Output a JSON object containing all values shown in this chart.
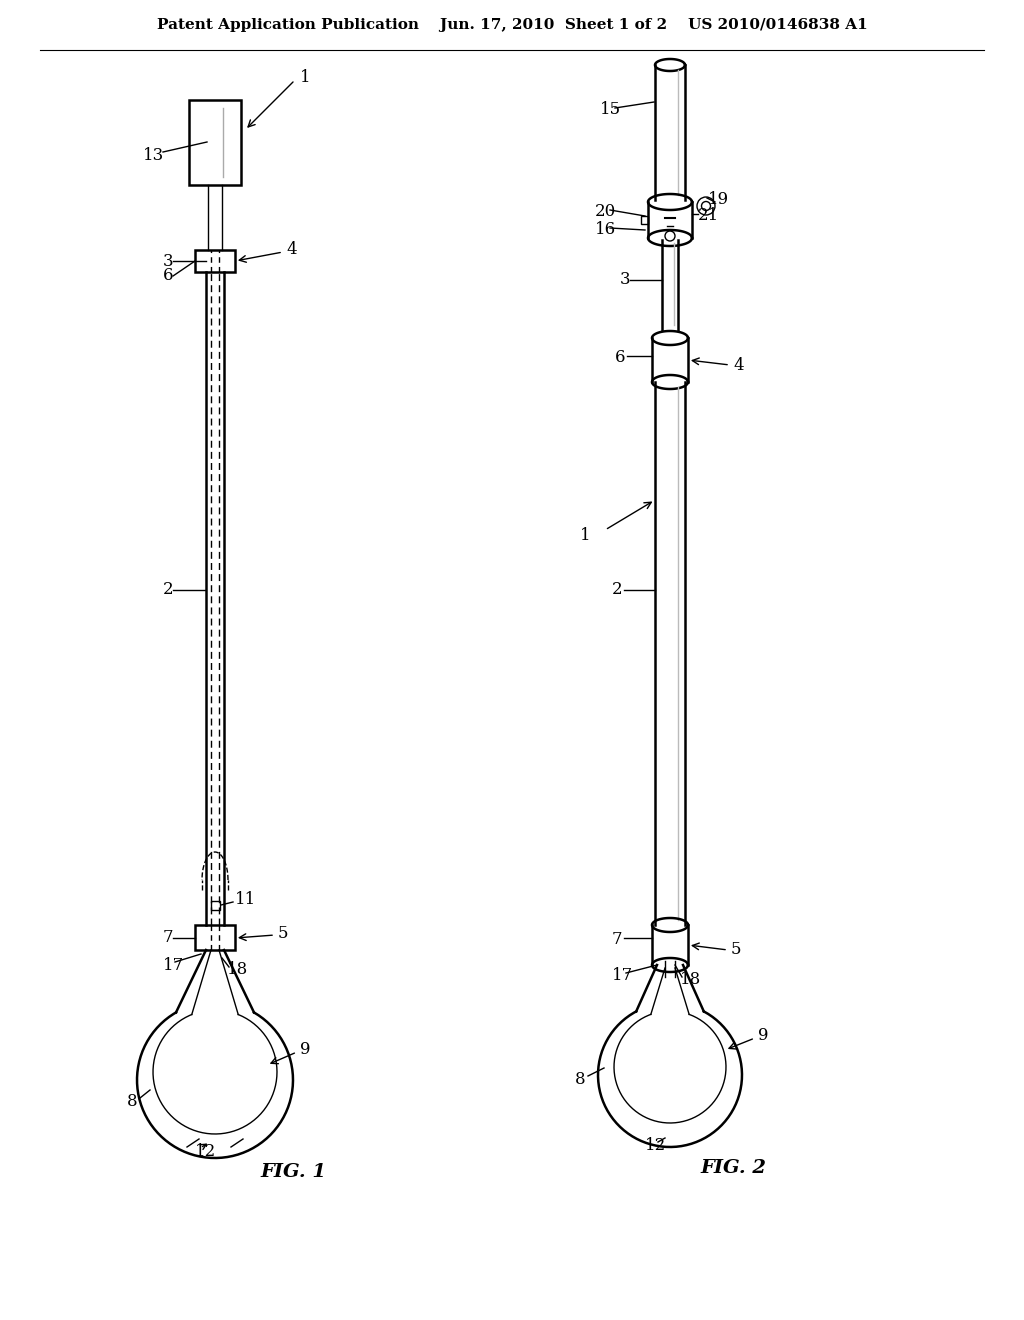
{
  "bg_color": "#ffffff",
  "line_color": "#000000",
  "header_text": "Patent Application Publication    Jun. 17, 2010  Sheet 1 of 2    US 2010/0146838 A1",
  "fig1_label": "FIG. 1",
  "fig2_label": "FIG. 2",
  "header_fontsize": 11,
  "label_fontsize": 12,
  "fig_caption_fontsize": 14
}
